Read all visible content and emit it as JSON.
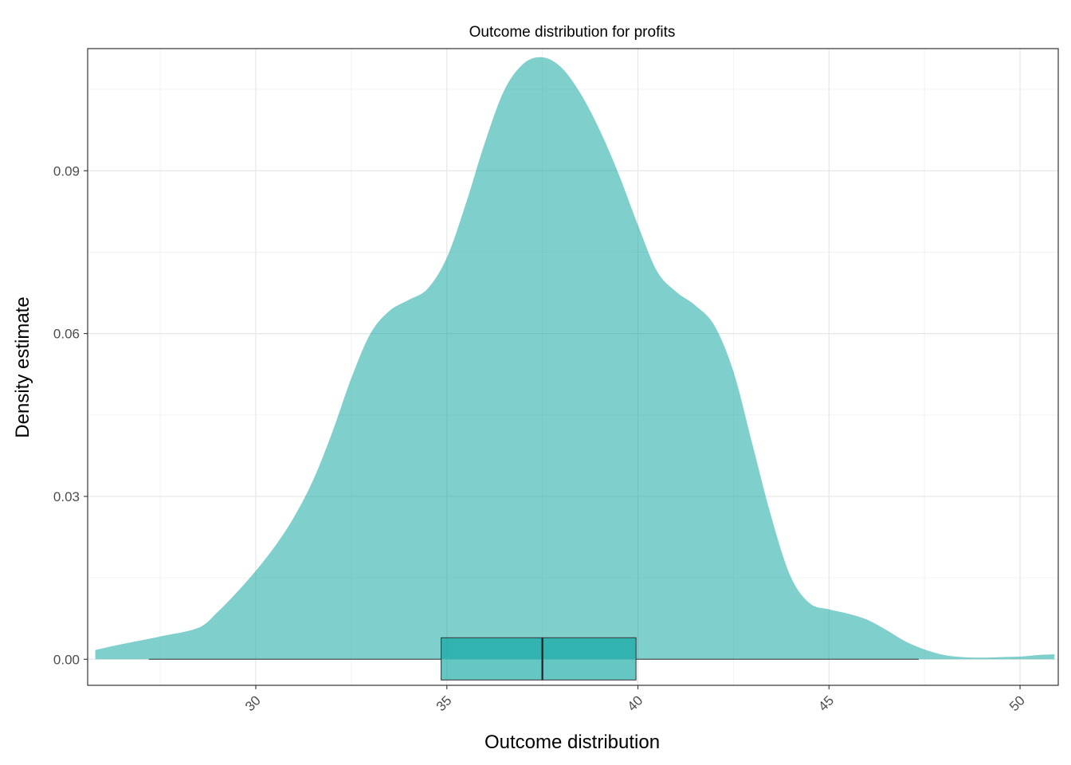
{
  "chart_data": {
    "type": "area",
    "title": "Outcome distribution for profits",
    "xlabel": "Outcome distribution",
    "ylabel": "Density estimate",
    "xlim": [
      25.6,
      51.0
    ],
    "ylim": [
      -0.0048,
      0.1125
    ],
    "x_ticks": [
      "30",
      "35",
      "40",
      "45",
      "50"
    ],
    "y_ticks": [
      "0.00",
      "0.03",
      "0.06",
      "0.09"
    ],
    "grid": true,
    "legend": "none",
    "fill_color": "#00a09b",
    "fill_opacity": 0.5,
    "density": {
      "x": [
        25.8,
        26.5,
        27.5,
        28.5,
        29.0,
        29.5,
        30.0,
        30.5,
        31.0,
        31.5,
        32.0,
        32.5,
        33.0,
        33.5,
        34.0,
        34.5,
        35.0,
        35.5,
        36.0,
        36.5,
        37.0,
        37.5,
        38.0,
        38.5,
        39.0,
        39.5,
        40.0,
        40.5,
        41.0,
        41.5,
        42.0,
        42.5,
        43.0,
        43.5,
        44.0,
        44.5,
        45.0,
        45.5,
        46.0,
        46.5,
        47.0,
        47.5,
        48.0,
        48.5,
        49.0,
        49.5,
        50.0,
        50.5,
        50.9
      ],
      "y": [
        0.0017,
        0.0028,
        0.0042,
        0.0058,
        0.0087,
        0.0123,
        0.0163,
        0.0208,
        0.0262,
        0.033,
        0.0418,
        0.0518,
        0.06,
        0.0642,
        0.0662,
        0.0683,
        0.074,
        0.084,
        0.0953,
        0.1048,
        0.1097,
        0.1109,
        0.109,
        0.1042,
        0.0975,
        0.0893,
        0.08,
        0.0715,
        0.0677,
        0.0652,
        0.0615,
        0.053,
        0.0395,
        0.026,
        0.0152,
        0.0103,
        0.0092,
        0.0084,
        0.0073,
        0.0054,
        0.0033,
        0.0018,
        0.0008,
        0.0004,
        0.0003,
        0.0004,
        0.0005,
        0.0008,
        0.0009
      ]
    },
    "boxplot": {
      "whisker_low": 27.2,
      "q1": 34.85,
      "median": 37.5,
      "q3": 39.95,
      "whisker_high": 47.35,
      "color": "#00a09b"
    }
  }
}
